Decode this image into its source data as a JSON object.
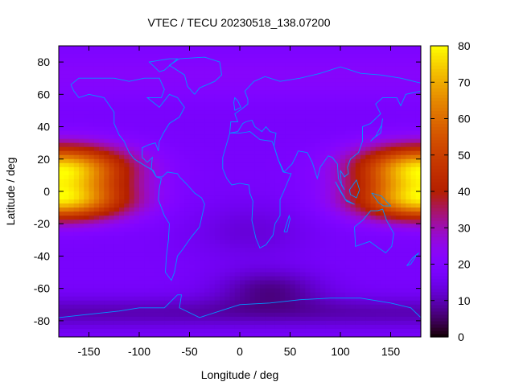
{
  "chart_data": {
    "type": "heatmap",
    "title": "VTEC / TECU 20230518_138.07200",
    "xlabel": "Longitude / deg",
    "ylabel": "Latitude / deg",
    "xlim": [
      -180,
      180
    ],
    "ylim": [
      -90,
      90
    ],
    "x_ticks": [
      "-150",
      "-100",
      "-50",
      "0",
      "50",
      "100",
      "150"
    ],
    "x_tick_values": [
      -150,
      -100,
      -50,
      0,
      50,
      100,
      150
    ],
    "y_ticks": [
      "80",
      "60",
      "40",
      "20",
      "0",
      "-20",
      "-40",
      "-60",
      "-80"
    ],
    "y_tick_values": [
      80,
      60,
      40,
      20,
      0,
      -20,
      -40,
      -60,
      -80
    ],
    "colorbar": {
      "range": [
        0,
        80
      ],
      "ticks": [
        "0",
        "10",
        "20",
        "30",
        "40",
        "50",
        "60",
        "70",
        "80"
      ],
      "tick_values": [
        0,
        10,
        20,
        30,
        40,
        50,
        60,
        70,
        80
      ],
      "colormap": "black-purple-red-orange-yellow"
    },
    "grid": false,
    "resolution_deg": {
      "lon": 5,
      "lat": 2.5
    },
    "overlay": "coastlines",
    "overlay_color": "#0096ff",
    "features": [
      {
        "name": "maximum-pacific",
        "lon": -175,
        "lat": 6,
        "value": 78
      },
      {
        "name": "maximum-west-pacific",
        "lon": 175,
        "lat": 8,
        "value": 75
      },
      {
        "name": "minimum-south-atlantic",
        "lon": 30,
        "lat": -62,
        "value": 4
      }
    ]
  }
}
